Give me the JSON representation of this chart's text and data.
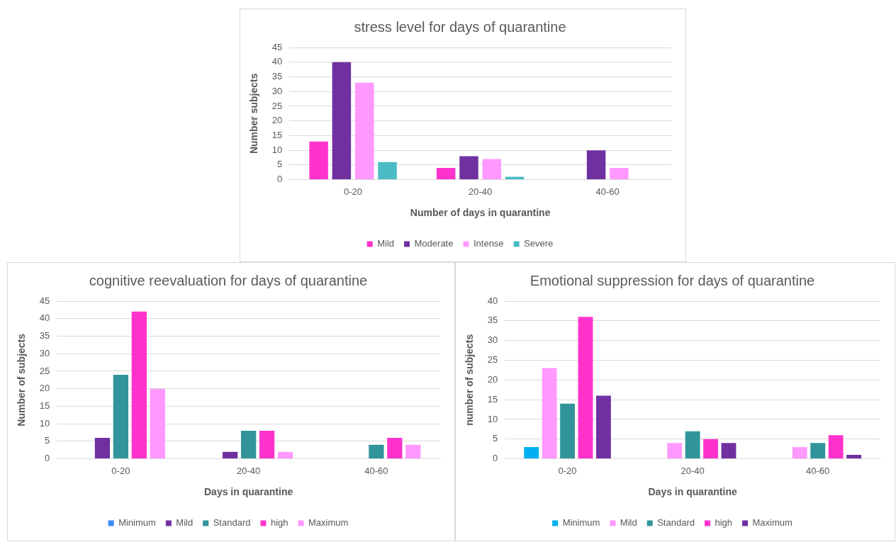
{
  "chart_data": [
    {
      "type": "bar",
      "title": "stress level for days of quarantine",
      "xlabel": "Number of days in quarantine",
      "ylabel": "Number subjects",
      "categories": [
        "0-20",
        "20-40",
        "40-60"
      ],
      "series": [
        {
          "name": "Mild",
          "color": "#ff33cc",
          "values": [
            13,
            4,
            null
          ]
        },
        {
          "name": "Moderate",
          "color": "#7030a0",
          "values": [
            40,
            8,
            10
          ]
        },
        {
          "name": "Intense",
          "color": "#ff99ff",
          "values": [
            33,
            7,
            4
          ]
        },
        {
          "name": "Severe",
          "color": "#4bbcc4",
          "values": [
            6,
            1,
            null
          ]
        }
      ],
      "ylim": [
        0,
        45
      ],
      "yticks": [
        0,
        5,
        10,
        15,
        20,
        25,
        30,
        35,
        40,
        45
      ],
      "grid": "y",
      "legend": "bottom"
    },
    {
      "type": "bar",
      "title": "cognitive reevaluation for days of quarantine",
      "xlabel": "Days in quarantine",
      "ylabel": "Number of subjects",
      "categories": [
        "0-20",
        "20-40",
        "40-60"
      ],
      "series": [
        {
          "name": "Minimum",
          "color": "#3d8af7",
          "values": [
            null,
            null,
            null
          ]
        },
        {
          "name": "Mild",
          "color": "#7030a0",
          "values": [
            6,
            2,
            null
          ]
        },
        {
          "name": "Standard",
          "color": "#31949a",
          "values": [
            24,
            8,
            4
          ]
        },
        {
          "name": "high",
          "color": "#ff33cc",
          "values": [
            42,
            8,
            6
          ]
        },
        {
          "name": "Maximum",
          "color": "#ff99ff",
          "values": [
            20,
            2,
            4
          ]
        }
      ],
      "ylim": [
        0,
        45
      ],
      "yticks": [
        0,
        5,
        10,
        15,
        20,
        25,
        30,
        35,
        40,
        45
      ],
      "grid": "y",
      "legend": "bottom"
    },
    {
      "type": "bar",
      "title": "Emotional suppression for days of quarantine",
      "xlabel": "Days in quarantine",
      "ylabel": "number of subjects",
      "categories": [
        "0-20",
        "20-40",
        "40-60"
      ],
      "series": [
        {
          "name": "Minimum",
          "color": "#00b0f0",
          "values": [
            3,
            null,
            null
          ]
        },
        {
          "name": "Mild",
          "color": "#ff99ff",
          "values": [
            23,
            4,
            3
          ]
        },
        {
          "name": "Standard",
          "color": "#31949a",
          "values": [
            14,
            7,
            4
          ]
        },
        {
          "name": "high",
          "color": "#ff33cc",
          "values": [
            36,
            5,
            6
          ]
        },
        {
          "name": "Maximum",
          "color": "#7030a0",
          "values": [
            16,
            4,
            1
          ]
        }
      ],
      "ylim": [
        0,
        40
      ],
      "yticks": [
        0,
        5,
        10,
        15,
        20,
        25,
        30,
        35,
        40
      ],
      "grid": "y",
      "legend": "bottom"
    }
  ]
}
